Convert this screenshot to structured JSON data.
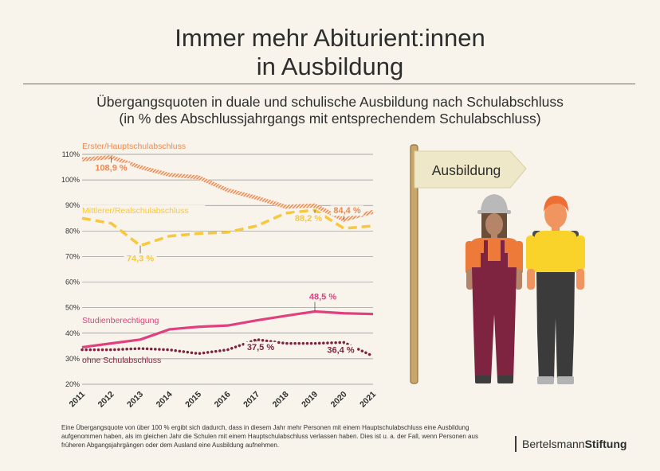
{
  "header": {
    "title_line1": "Immer mehr Abiturient:innen",
    "title_line2": "in Ausbildung",
    "subtitle_line1": "Übergangsquoten in duale und schulische Ausbildung nach Schulabschluss",
    "subtitle_line2": "(in % des Abschlussjahrgangs mit entsprechendem Schulabschluss)"
  },
  "sign": {
    "label": "Ausbildung"
  },
  "footnote": "Eine Übergangsquote von über 100 % ergibt sich dadurch, dass in diesem Jahr mehr Personen mit einem Hauptschulabschluss eine Ausbildung aufgenommen haben, als im gleichen Jahr die Schulen mit einem Hauptschulabschluss verlassen haben. Dies ist u. a. der Fall, wenn Personen aus früheren Abgangsjahrgängen oder dem Ausland eine Ausbildung aufnehmen.",
  "brand": {
    "part1": "Bertelsmann",
    "part2": "Stiftung"
  },
  "colors": {
    "hauptschule": "#f0894f",
    "realschule": "#f7c73d",
    "studien": "#e1407f",
    "ohne": "#7e2340",
    "text": "#2d2d2d"
  },
  "chart_data": {
    "type": "line",
    "x": [
      2011,
      2012,
      2013,
      2014,
      2015,
      2016,
      2017,
      2018,
      2019,
      2020,
      2021
    ],
    "yticks": [
      20,
      30,
      40,
      50,
      60,
      70,
      80,
      90,
      100,
      110
    ],
    "ytick_labels": [
      "20%",
      "30%",
      "40%",
      "50%",
      "60%",
      "70%",
      "80%",
      "90%",
      "100%",
      "110%"
    ],
    "ylim": [
      20,
      110
    ],
    "grid": true,
    "series": [
      {
        "name": "Erster/Hauptschulabschluss",
        "key": "hauptschule",
        "style": "hatched",
        "values": [
          108,
          108.9,
          105,
          102,
          101,
          96,
          93,
          89.5,
          90,
          84.4,
          87.5
        ],
        "labels": [
          {
            "x": 2012,
            "text": "108,9 %"
          },
          {
            "x": 2020,
            "text": "84,4 %"
          }
        ]
      },
      {
        "name": "Mittlerer/Realschulabschluss",
        "key": "realschule",
        "style": "dashed",
        "values": [
          85,
          83,
          74.3,
          78,
          79,
          79.5,
          82,
          87,
          88.2,
          81,
          82
        ],
        "labels": [
          {
            "x": 2013,
            "text": "74,3 %"
          },
          {
            "x": 2019,
            "text": "88,2 %"
          }
        ]
      },
      {
        "name": "Studienberechtigung",
        "key": "studien",
        "style": "solid",
        "values": [
          34.5,
          36,
          37.5,
          41.5,
          42.5,
          43,
          45,
          46.8,
          48.5,
          47.8,
          47.5
        ],
        "labels": [
          {
            "x": 2019,
            "text": "48,5 %"
          }
        ]
      },
      {
        "name": "ohne Schulabschluss",
        "key": "ohne",
        "style": "dotted",
        "values": [
          33.5,
          33.5,
          34,
          33.5,
          32,
          33.5,
          37.5,
          36,
          36,
          36.4,
          31
        ],
        "labels": [
          {
            "x": 2017,
            "text": "37,5 %"
          },
          {
            "x": 2020,
            "text": "36,4 %"
          }
        ]
      }
    ]
  }
}
